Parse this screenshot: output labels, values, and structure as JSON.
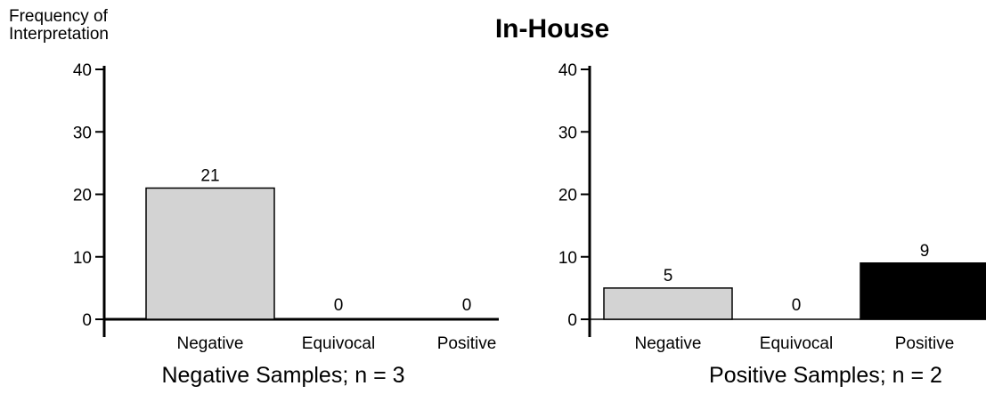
{
  "chart_data": {
    "type": "bar",
    "title": "In-House",
    "ylabel": "Frequency of\nInterpretation",
    "panels": [
      {
        "xlabel": "Negative Samples; n = 3",
        "categories": [
          "Negative",
          "Equivocal",
          "Positive"
        ],
        "values": [
          21,
          0,
          0
        ],
        "value_labels": [
          "21",
          "0",
          "0"
        ],
        "colors": [
          "#d3d3d3",
          "#d3d3d3",
          "#d3d3d3"
        ],
        "ylim": [
          0,
          40
        ],
        "yticks": [
          0,
          10,
          20,
          30,
          40
        ]
      },
      {
        "xlabel": "Positive Samples; n = 2",
        "categories": [
          "Negative",
          "Equivocal",
          "Positive"
        ],
        "values": [
          5,
          0,
          9
        ],
        "value_labels": [
          "5",
          "0",
          "9"
        ],
        "colors": [
          "#d3d3d3",
          "#d3d3d3",
          "#000000"
        ],
        "ylim": [
          0,
          40
        ],
        "yticks": [
          0,
          10,
          20,
          30,
          40
        ]
      }
    ]
  }
}
